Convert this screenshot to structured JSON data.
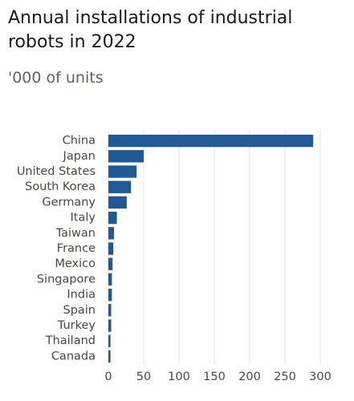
{
  "chart_data": {
    "type": "bar",
    "orientation": "horizontal",
    "title": "Annual installations of industrial robots in 2022",
    "subtitle": "'000 of units",
    "categories": [
      "China",
      "Japan",
      "United States",
      "South Korea",
      "Germany",
      "Italy",
      "Taiwan",
      "France",
      "Mexico",
      "Singapore",
      "India",
      "Spain",
      "Turkey",
      "Thailand",
      "Canada"
    ],
    "values": [
      290,
      50,
      40,
      32,
      26,
      12,
      8,
      7,
      6,
      5,
      5,
      4,
      4,
      3,
      3
    ],
    "color": "#1f5a96",
    "xlim": [
      0,
      300
    ],
    "xticks": [
      0,
      50,
      100,
      150,
      200,
      250,
      300
    ],
    "grid": true
  }
}
